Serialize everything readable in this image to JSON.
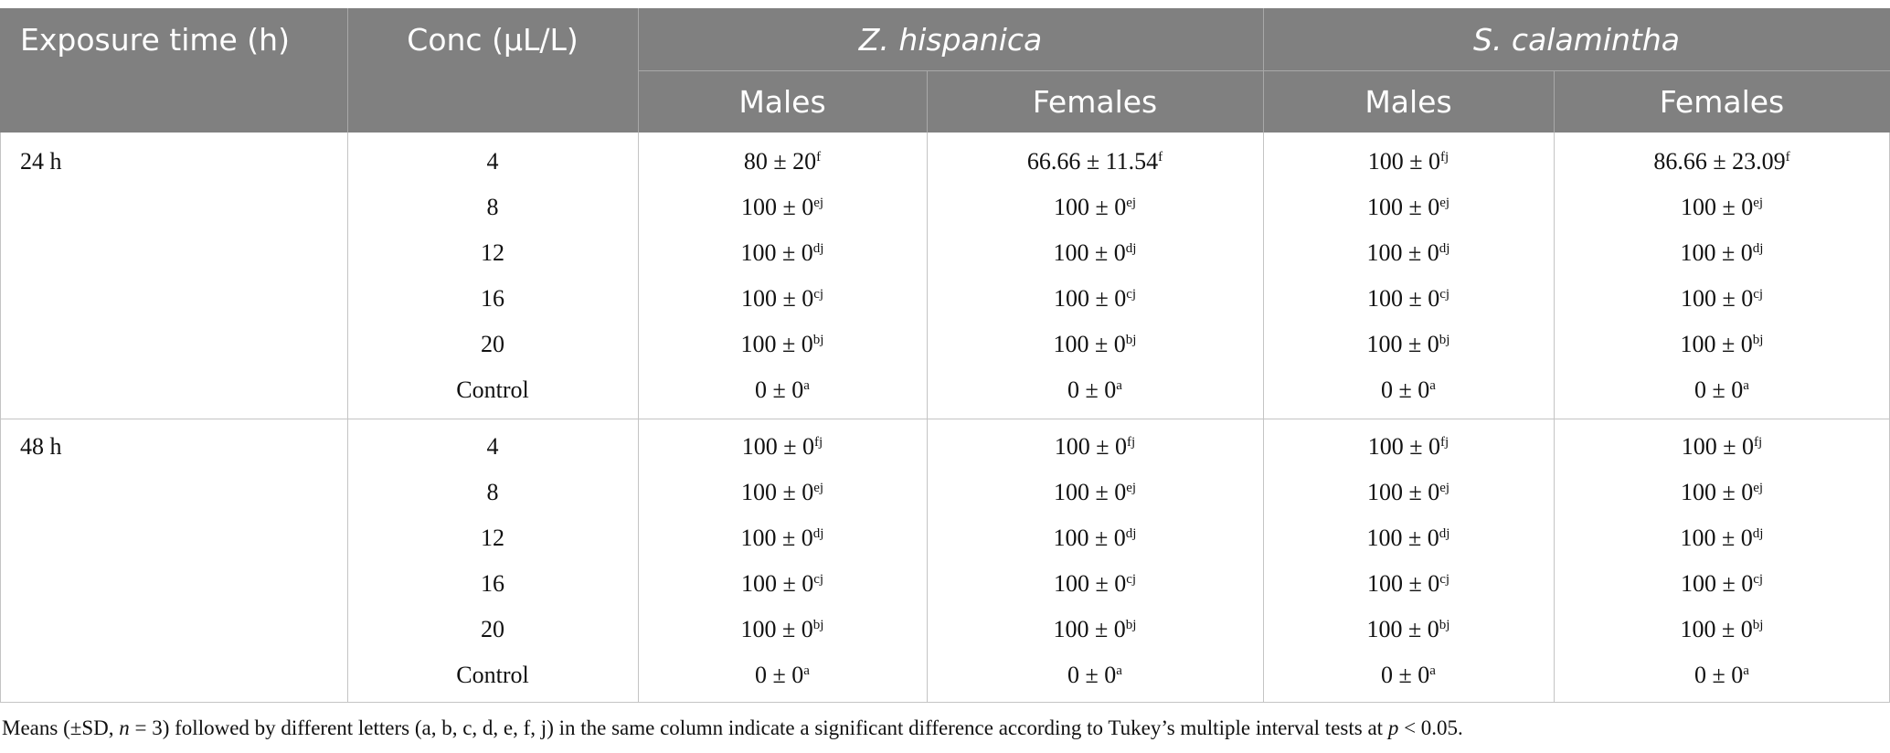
{
  "header": {
    "exposure": "Exposure time (h)",
    "conc": "Conc (μL/L)",
    "species": [
      "Z. hispanica",
      "S. calamintha"
    ],
    "sex": [
      "Males",
      "Females",
      "Males",
      "Females"
    ]
  },
  "groups": [
    {
      "time": "24 h",
      "rows": [
        {
          "conc": "4",
          "cells": [
            [
              "80 ± 20",
              "f"
            ],
            [
              "66.66 ± 11.54",
              "f"
            ],
            [
              "100 ± 0",
              "fj"
            ],
            [
              "86.66 ± 23.09",
              "f"
            ]
          ]
        },
        {
          "conc": "8",
          "cells": [
            [
              "100 ± 0",
              "ej"
            ],
            [
              "100 ± 0",
              "ej"
            ],
            [
              "100 ± 0",
              "ej"
            ],
            [
              "100 ± 0",
              "ej"
            ]
          ]
        },
        {
          "conc": "12",
          "cells": [
            [
              "100 ± 0",
              "dj"
            ],
            [
              "100 ± 0",
              "dj"
            ],
            [
              "100 ± 0",
              "dj"
            ],
            [
              "100 ± 0",
              "dj"
            ]
          ]
        },
        {
          "conc": "16",
          "cells": [
            [
              "100 ± 0",
              "cj"
            ],
            [
              "100 ± 0",
              "cj"
            ],
            [
              "100 ± 0",
              "cj"
            ],
            [
              "100 ± 0",
              "cj"
            ]
          ]
        },
        {
          "conc": "20",
          "cells": [
            [
              "100 ± 0",
              "bj"
            ],
            [
              "100 ± 0",
              "bj"
            ],
            [
              "100 ± 0",
              "bj"
            ],
            [
              "100 ± 0",
              "bj"
            ]
          ]
        },
        {
          "conc": "Control",
          "cells": [
            [
              "0 ± 0",
              "a"
            ],
            [
              "0 ± 0",
              "a"
            ],
            [
              "0 ± 0",
              "a"
            ],
            [
              "0 ± 0",
              "a"
            ]
          ]
        }
      ]
    },
    {
      "time": "48 h",
      "rows": [
        {
          "conc": "4",
          "cells": [
            [
              "100 ± 0",
              "fj"
            ],
            [
              "100 ± 0",
              "fj"
            ],
            [
              "100 ± 0",
              "fj"
            ],
            [
              "100 ± 0",
              "fj"
            ]
          ]
        },
        {
          "conc": "8",
          "cells": [
            [
              "100 ± 0",
              "ej"
            ],
            [
              "100 ± 0",
              "ej"
            ],
            [
              "100 ± 0",
              "ej"
            ],
            [
              "100 ± 0",
              "ej"
            ]
          ]
        },
        {
          "conc": "12",
          "cells": [
            [
              "100 ± 0",
              "dj"
            ],
            [
              "100 ± 0",
              "dj"
            ],
            [
              "100 ± 0",
              "dj"
            ],
            [
              "100 ± 0",
              "dj"
            ]
          ]
        },
        {
          "conc": "16",
          "cells": [
            [
              "100 ± 0",
              "cj"
            ],
            [
              "100 ± 0",
              "cj"
            ],
            [
              "100 ± 0",
              "cj"
            ],
            [
              "100 ± 0",
              "cj"
            ]
          ]
        },
        {
          "conc": "20",
          "cells": [
            [
              "100 ± 0",
              "bj"
            ],
            [
              "100 ± 0",
              "bj"
            ],
            [
              "100 ± 0",
              "bj"
            ],
            [
              "100 ± 0",
              "bj"
            ]
          ]
        },
        {
          "conc": "Control",
          "cells": [
            [
              "0 ± 0",
              "a"
            ],
            [
              "0 ± 0",
              "a"
            ],
            [
              "0 ± 0",
              "a"
            ],
            [
              "0 ± 0",
              "a"
            ]
          ]
        }
      ]
    }
  ],
  "footnote": [
    "Means (±SD, ",
    "n",
    " = 3) followed by different letters (a, b, c, d, e, f, j) in the same column indicate a significant difference according to Tukey’s multiple interval tests at ",
    "p",
    " < 0.05."
  ]
}
